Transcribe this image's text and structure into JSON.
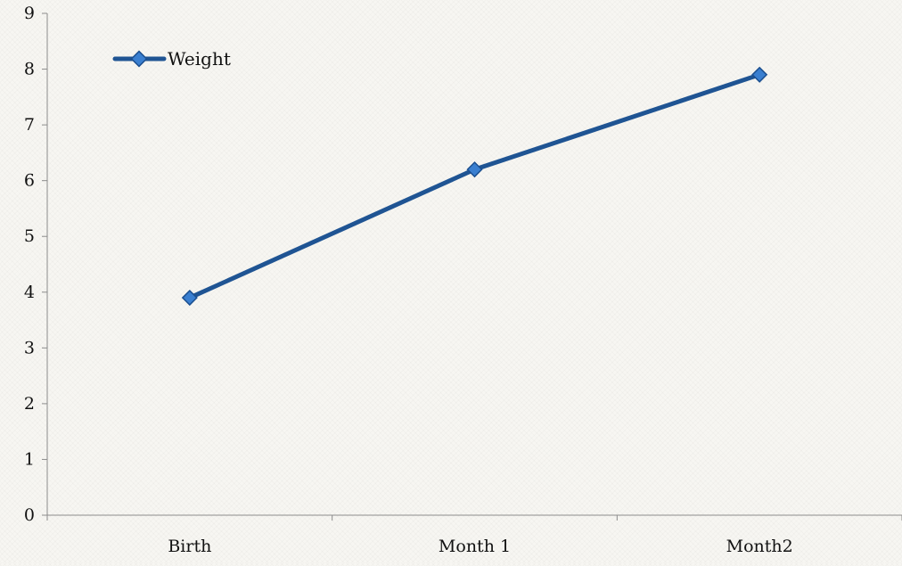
{
  "chart_data": {
    "type": "line",
    "title": "",
    "xlabel": "",
    "ylabel": "",
    "categories": [
      "Birth",
      "Month 1",
      "Month2"
    ],
    "series": [
      {
        "name": "Weight",
        "values": [
          3.9,
          6.2,
          7.9
        ]
      }
    ],
    "ylim": [
      0,
      9
    ],
    "yticks": [
      "0",
      "1",
      "2",
      "3",
      "4",
      "5",
      "6",
      "7",
      "8",
      "9"
    ],
    "grid": false,
    "legend": "top-left",
    "colors": {
      "line": "#1f5493",
      "marker_fill": "#3a7fd0",
      "marker_stroke": "#1b4f8f",
      "axis": "#8c8c8c"
    }
  }
}
